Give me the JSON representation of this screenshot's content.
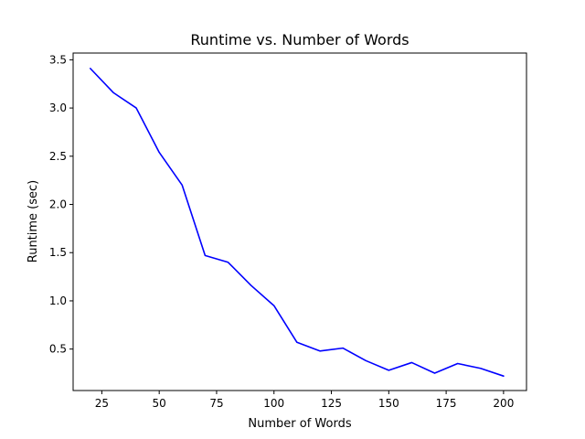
{
  "chart_data": {
    "type": "line",
    "title": "Runtime vs. Number of Words",
    "xlabel": "Number of Words",
    "ylabel": "Runtime (sec)",
    "xlim": [
      12.5,
      210
    ],
    "ylim": [
      0.07,
      3.57
    ],
    "xticks": [
      25,
      50,
      75,
      100,
      125,
      150,
      175,
      200
    ],
    "xtick_labels": [
      "25",
      "50",
      "75",
      "100",
      "125",
      "150",
      "175",
      "200"
    ],
    "yticks": [
      0.5,
      1.0,
      1.5,
      2.0,
      2.5,
      3.0,
      3.5
    ],
    "ytick_labels": [
      "0.5",
      "1.0",
      "1.5",
      "2.0",
      "2.5",
      "3.0",
      "3.5"
    ],
    "grid": false,
    "series": [
      {
        "color": "#0000ff",
        "x": [
          20,
          30,
          40,
          50,
          60,
          70,
          80,
          90,
          100,
          110,
          120,
          130,
          140,
          150,
          160,
          170,
          180,
          190,
          200
        ],
        "y": [
          3.41,
          3.16,
          3.0,
          2.54,
          2.2,
          1.47,
          1.4,
          1.16,
          0.95,
          0.57,
          0.48,
          0.51,
          0.38,
          0.28,
          0.36,
          0.25,
          0.35,
          0.3,
          0.22
        ]
      }
    ]
  }
}
